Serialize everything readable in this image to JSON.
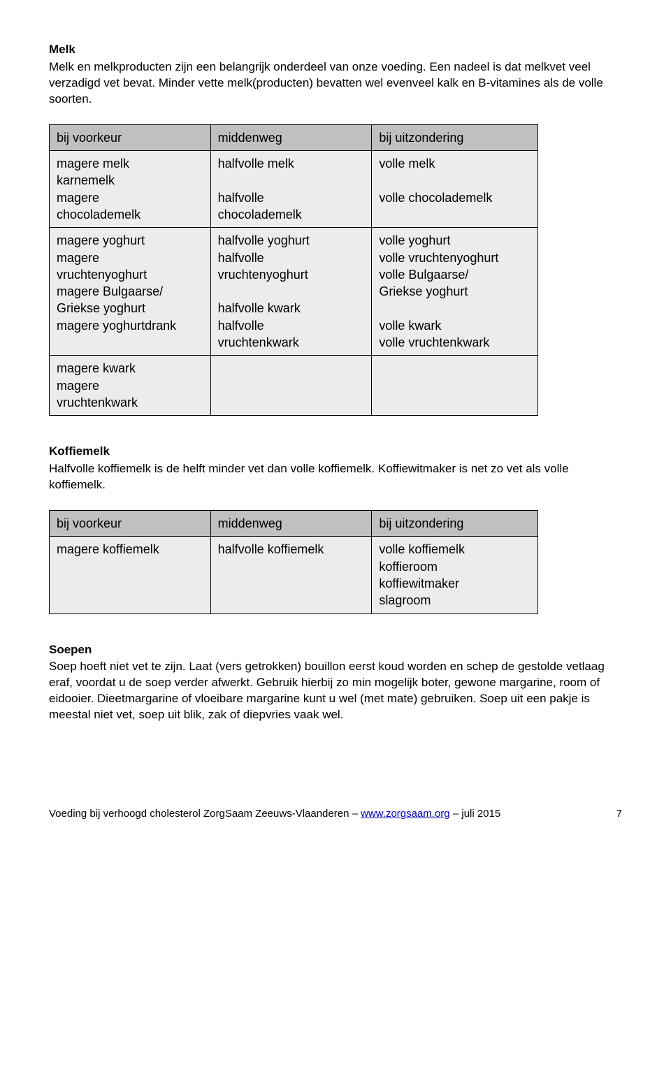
{
  "sections": {
    "melk": {
      "heading": "Melk",
      "body": "Melk en melkproducten zijn een belangrijk onderdeel van onze voeding. Een nadeel is dat melkvet veel verzadigd vet bevat. Minder vette melk(producten) bevatten wel evenveel kalk en B-vitamines als de volle soorten."
    },
    "koffiemelk": {
      "heading": "Koffiemelk",
      "body": "Halfvolle koffiemelk is de helft minder vet dan volle koffiemelk. Koffiewitmaker is net zo vet als volle koffiemelk."
    },
    "soepen": {
      "heading": "Soepen",
      "body": "Soep hoeft niet vet te zijn. Laat (vers getrokken) bouillon eerst koud worden en schep de gestolde vetlaag eraf, voordat u de soep verder afwerkt. Gebruik hierbij zo min mogelijk boter, gewone margarine, room of eidooier. Dieetmargarine of vloeibare margarine kunt u wel (met mate) gebruiken. Soep uit een pakje is meestal niet vet, soep uit blik, zak of diepvries vaak wel."
    }
  },
  "table1": {
    "columns": [
      "bij voorkeur",
      "middenweg",
      "bij uitzondering"
    ],
    "rows": [
      [
        "magere melk\nkarnemelk\nmagere\nchocolademelk",
        "halfvolle melk\n\nhalfvolle\nchocolademelk",
        "volle melk\n\nvolle chocolademelk"
      ],
      [
        "magere yoghurt\nmagere\nvruchtenyoghurt\nmagere Bulgaarse/\nGriekse yoghurt\nmagere yoghurtdrank",
        "halfvolle yoghurt\nhalfvolle\nvruchtenyoghurt\n\nhalfvolle kwark\nhalfvolle\nvruchtenkwark",
        "volle yoghurt\nvolle vruchtenyoghurt\nvolle Bulgaarse/\nGriekse yoghurt\n\nvolle kwark\nvolle vruchtenkwark"
      ],
      [
        "magere kwark\nmagere\nvruchtenkwark",
        "",
        ""
      ]
    ],
    "header_bg": "#c0c0c0",
    "cell_bg": "#ececec",
    "border_color": "#000000",
    "font_size": 18
  },
  "table2": {
    "columns": [
      "bij voorkeur",
      "middenweg",
      "bij uitzondering"
    ],
    "rows": [
      [
        "magere koffiemelk",
        "halfvolle koffiemelk",
        "volle koffiemelk\nkoffieroom\nkoffiewitmaker\nslagroom"
      ]
    ],
    "header_bg": "#c0c0c0",
    "cell_bg": "#ececec",
    "border_color": "#000000",
    "font_size": 18
  },
  "footer": {
    "left_prefix": "Voeding bij verhoogd cholesterol   ZorgSaam Zeeuws-Vlaanderen – ",
    "link_text": "www.zorgsaam.org",
    "left_suffix": " – juli  2015",
    "page": "7"
  }
}
